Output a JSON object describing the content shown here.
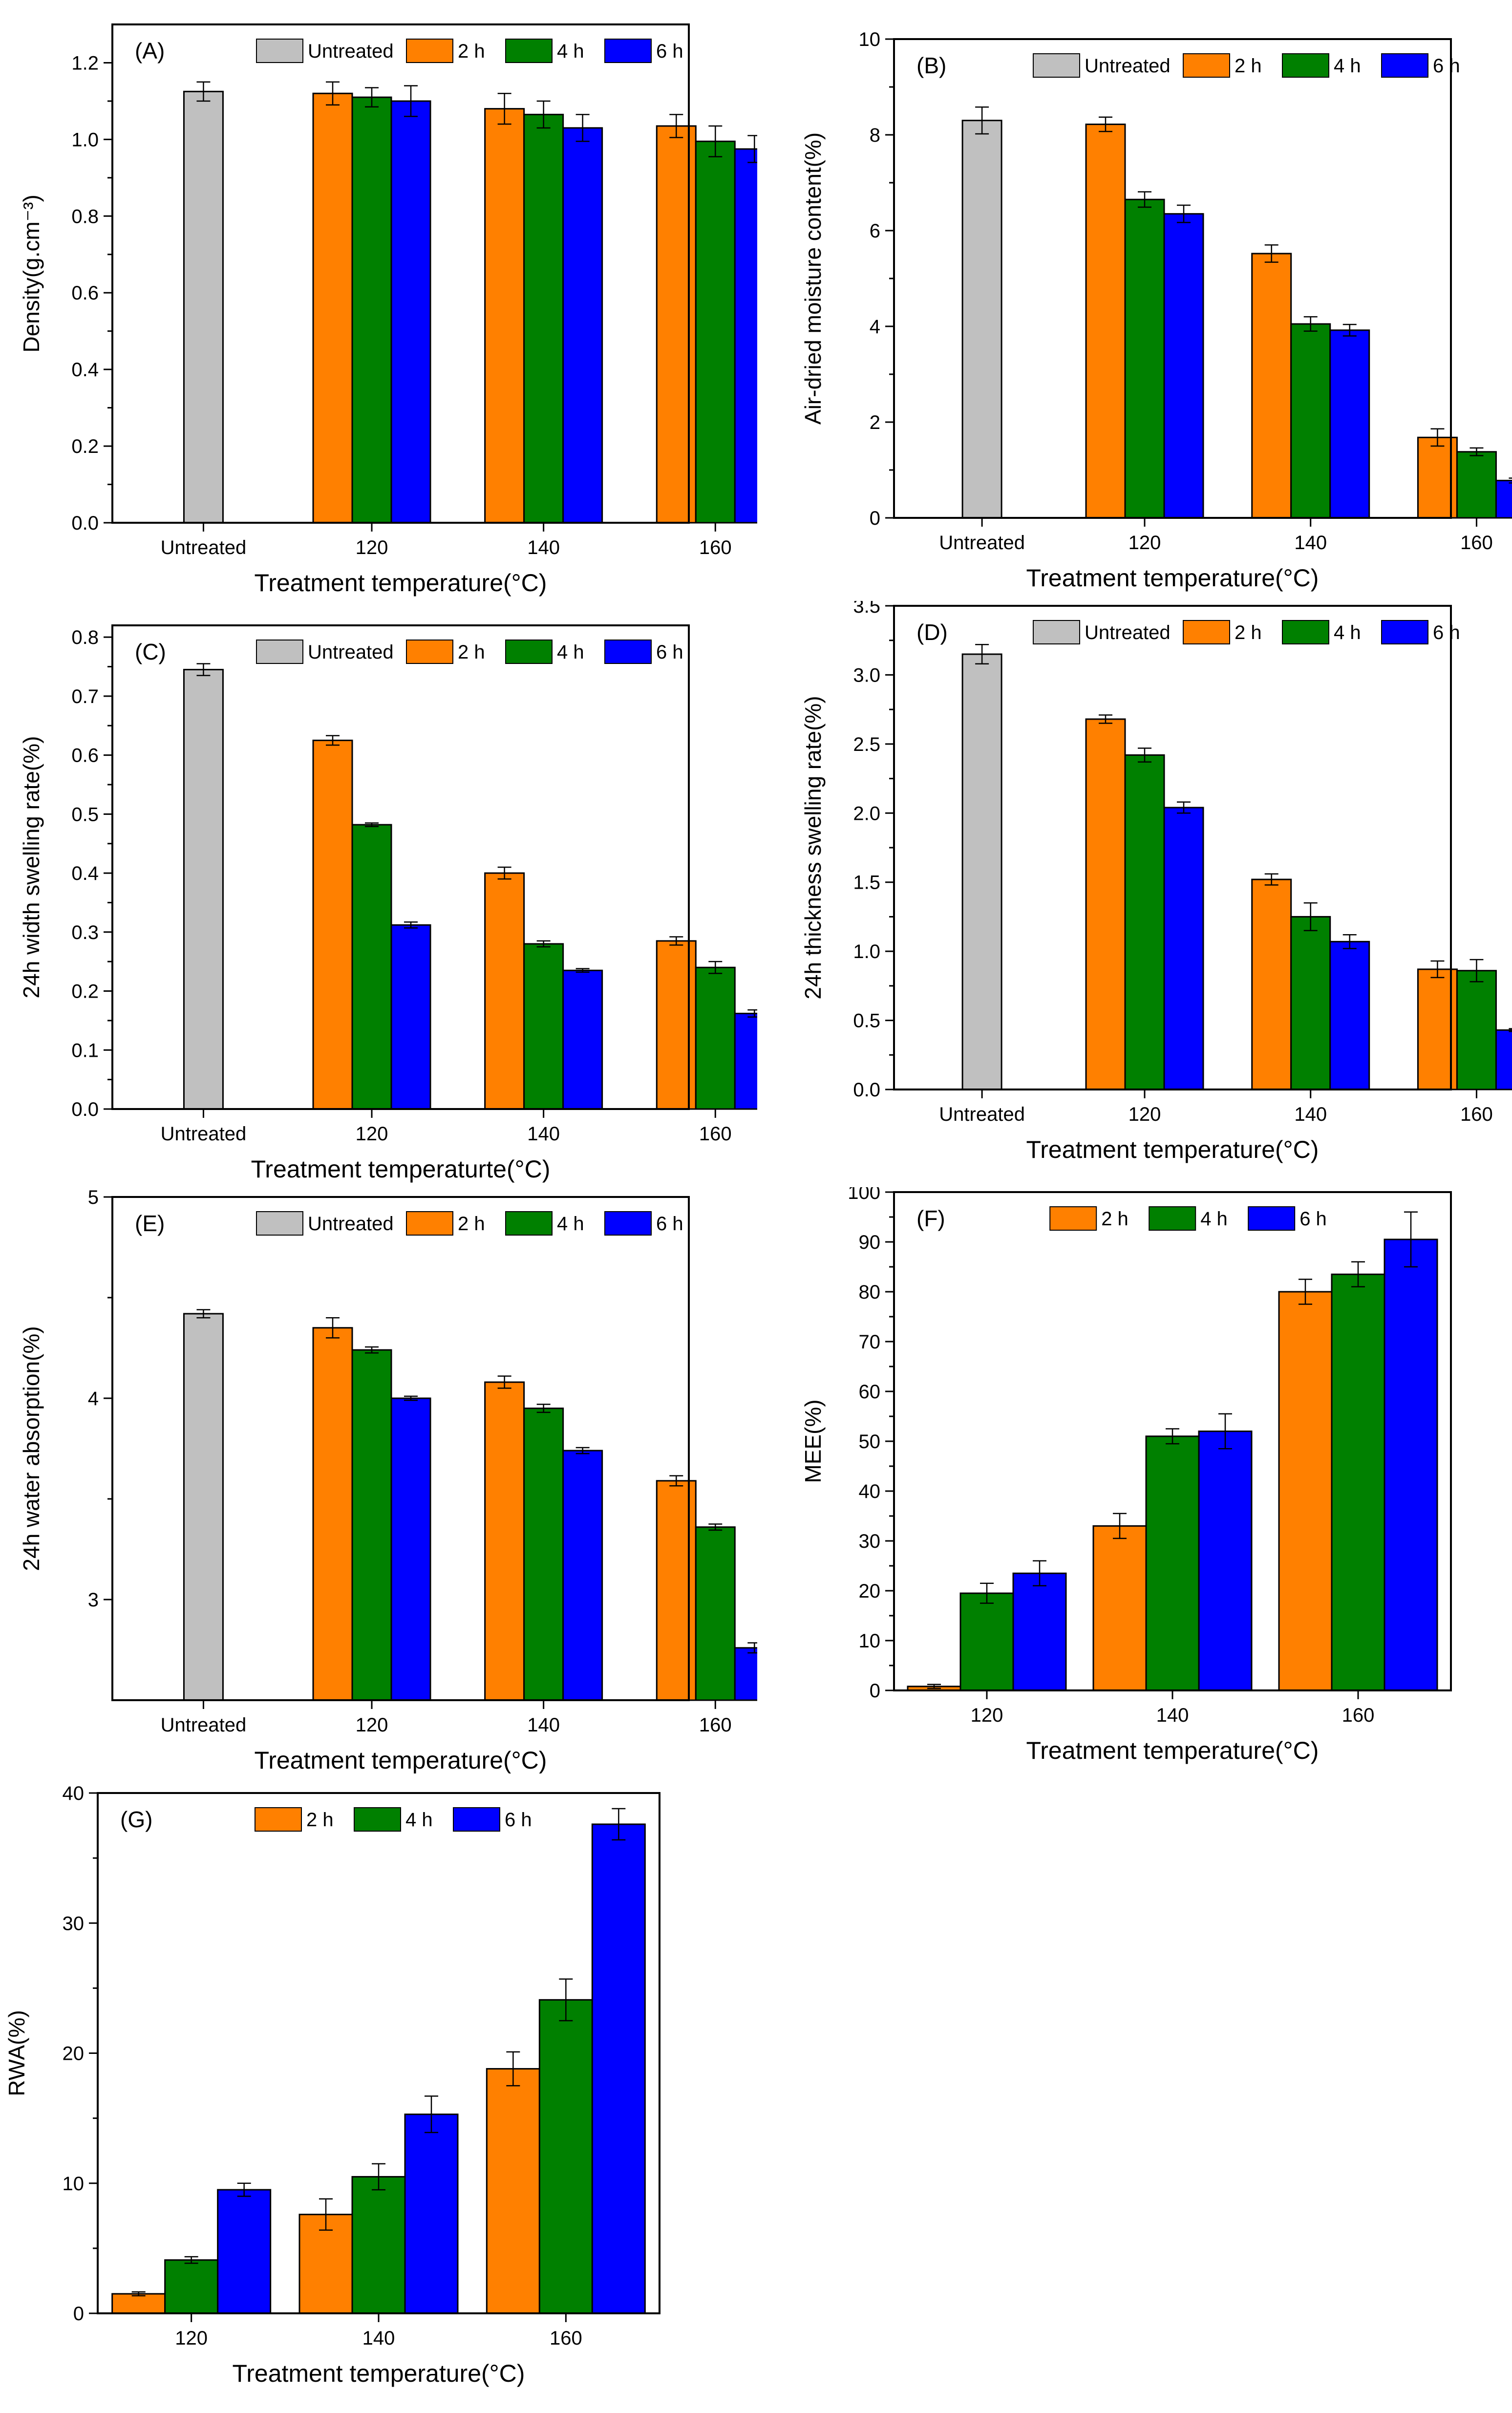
{
  "colors": {
    "untreated": "#c0c0c0",
    "h2": "#ff8000",
    "h4": "#008000",
    "h6": "#0000ff",
    "frame": "#000000"
  },
  "chart_data": [
    {
      "id": "A",
      "type": "bar",
      "panel_label": "(A)",
      "xlabel": "Treatment temperature(°C)",
      "ylabel": "Density(g.cm⁻³)",
      "ylim": [
        0,
        1.3
      ],
      "yticks": [
        0.0,
        0.2,
        0.4,
        0.6,
        0.8,
        1.0,
        1.2
      ],
      "ytick_labels": [
        "0.0",
        "0.2",
        "0.4",
        "0.6",
        "0.8",
        "1.0",
        "1.2"
      ],
      "legend": [
        "Untreated",
        "2 h",
        "4 h",
        "6 h"
      ],
      "legend_location": "top",
      "untreated": {
        "label": "Untreated",
        "value": 1.125,
        "err": 0.025
      },
      "categories": [
        "120",
        "140",
        "160"
      ],
      "series": [
        {
          "name": "2 h",
          "values": [
            1.12,
            1.08,
            1.035
          ],
          "errors": [
            0.03,
            0.04,
            0.03
          ]
        },
        {
          "name": "4 h",
          "values": [
            1.11,
            1.065,
            0.995
          ],
          "errors": [
            0.025,
            0.035,
            0.04
          ]
        },
        {
          "name": "6 h",
          "values": [
            1.1,
            1.03,
            0.975
          ],
          "errors": [
            0.04,
            0.035,
            0.035
          ]
        }
      ]
    },
    {
      "id": "B",
      "type": "bar",
      "panel_label": "(B)",
      "xlabel": "Treatment temperature(°C)",
      "ylabel": "Air-dried moisture content(%)",
      "ylim": [
        0,
        10
      ],
      "yticks": [
        0,
        2,
        4,
        6,
        8,
        10
      ],
      "ytick_labels": [
        "0",
        "2",
        "4",
        "6",
        "8",
        "10"
      ],
      "legend": [
        "Untreated",
        "2 h",
        "4 h",
        "6 h"
      ],
      "legend_location": "top",
      "untreated": {
        "label": "Untreated",
        "value": 8.3,
        "err": 0.28
      },
      "categories": [
        "120",
        "140",
        "160"
      ],
      "series": [
        {
          "name": "2 h",
          "values": [
            8.22,
            5.52,
            1.68
          ],
          "errors": [
            0.15,
            0.18,
            0.18
          ]
        },
        {
          "name": "4 h",
          "values": [
            6.65,
            4.05,
            1.38
          ],
          "errors": [
            0.16,
            0.15,
            0.08
          ]
        },
        {
          "name": "6 h",
          "values": [
            6.35,
            3.92,
            0.78
          ],
          "errors": [
            0.18,
            0.12,
            0.05
          ]
        }
      ]
    },
    {
      "id": "C",
      "type": "bar",
      "panel_label": "(C)",
      "xlabel": "Treatment temperaturte(°C)",
      "ylabel": "24h  width swelling rate(%)",
      "ylim": [
        0,
        0.82
      ],
      "yticks": [
        0.0,
        0.1,
        0.2,
        0.3,
        0.4,
        0.5,
        0.6,
        0.7,
        0.8
      ],
      "ytick_labels": [
        "0.0",
        "0.1",
        "0.2",
        "0.3",
        "0.4",
        "0.5",
        "0.6",
        "0.7",
        "0.8"
      ],
      "legend": [
        "Untreated",
        "2 h",
        "4 h",
        "6 h"
      ],
      "legend_location": "top",
      "untreated": {
        "label": "Untreated",
        "value": 0.745,
        "err": 0.01
      },
      "categories": [
        "120",
        "140",
        "160"
      ],
      "series": [
        {
          "name": "2 h",
          "values": [
            0.625,
            0.4,
            0.285
          ],
          "errors": [
            0.008,
            0.01,
            0.007
          ]
        },
        {
          "name": "4 h",
          "values": [
            0.482,
            0.28,
            0.24
          ],
          "errors": [
            0.003,
            0.005,
            0.01
          ]
        },
        {
          "name": "6 h",
          "values": [
            0.312,
            0.235,
            0.162
          ],
          "errors": [
            0.005,
            0.003,
            0.006
          ]
        }
      ]
    },
    {
      "id": "D",
      "type": "bar",
      "panel_label": "(D)",
      "xlabel": "Treatment temperature(°C)",
      "ylabel": "24h  thickness swelling rate(%)",
      "ylim": [
        0,
        3.5
      ],
      "yticks": [
        0.0,
        0.5,
        1.0,
        1.5,
        2.0,
        2.5,
        3.0,
        3.5
      ],
      "ytick_labels": [
        "0.0",
        "0.5",
        "1.0",
        "1.5",
        "2.0",
        "2.5",
        "3.0",
        "3.5"
      ],
      "legend": [
        "Untreated",
        "2 h",
        "4 h",
        "6 h"
      ],
      "legend_location": "top",
      "untreated": {
        "label": "Untreated",
        "value": 3.15,
        "err": 0.07
      },
      "categories": [
        "120",
        "140",
        "160"
      ],
      "series": [
        {
          "name": "2 h",
          "values": [
            2.68,
            1.52,
            0.87
          ],
          "errors": [
            0.03,
            0.04,
            0.06
          ]
        },
        {
          "name": "4 h",
          "values": [
            2.42,
            1.25,
            0.86
          ],
          "errors": [
            0.05,
            0.1,
            0.08
          ]
        },
        {
          "name": "6 h",
          "values": [
            2.04,
            1.07,
            0.43
          ],
          "errors": [
            0.04,
            0.05,
            0.01
          ]
        }
      ]
    },
    {
      "id": "E",
      "type": "bar",
      "panel_label": "(E)",
      "xlabel": "Treatment temperature(°C)",
      "ylabel": "24h water absorption(%)",
      "ylim": [
        2.5,
        5
      ],
      "yticks": [
        3,
        4,
        5
      ],
      "ytick_labels": [
        "3",
        "4",
        "5"
      ],
      "legend": [
        "Untreated",
        "2 h",
        "4 h",
        "6 h"
      ],
      "legend_location": "top",
      "untreated": {
        "label": "Untreated",
        "value": 4.42,
        "err": 0.02
      },
      "categories": [
        "120",
        "140",
        "160"
      ],
      "series": [
        {
          "name": "2 h",
          "values": [
            4.35,
            4.08,
            3.59
          ],
          "errors": [
            0.05,
            0.03,
            0.025
          ]
        },
        {
          "name": "4 h",
          "values": [
            4.24,
            3.95,
            3.36
          ],
          "errors": [
            0.015,
            0.02,
            0.015
          ]
        },
        {
          "name": "6 h",
          "values": [
            4.0,
            3.74,
            2.76
          ],
          "errors": [
            0.01,
            0.015,
            0.025
          ]
        }
      ]
    },
    {
      "id": "F",
      "type": "bar",
      "panel_label": "(F)",
      "xlabel": "Treatment temperature(°C)",
      "ylabel": "MEE(%)",
      "ylim": [
        0,
        100
      ],
      "yticks": [
        0,
        10,
        20,
        30,
        40,
        50,
        60,
        70,
        80,
        90,
        100
      ],
      "ytick_labels": [
        "0",
        "10",
        "20",
        "30",
        "40",
        "50",
        "60",
        "70",
        "80",
        "90",
        "100"
      ],
      "legend": [
        "2 h",
        "4 h",
        "6 h"
      ],
      "legend_location": "top",
      "categories": [
        "120",
        "140",
        "160"
      ],
      "series": [
        {
          "name": "2 h",
          "values": [
            0.8,
            33,
            80
          ],
          "errors": [
            0.4,
            2.5,
            2.5
          ]
        },
        {
          "name": "4 h",
          "values": [
            19.5,
            51,
            83.5
          ],
          "errors": [
            2.0,
            1.5,
            2.5
          ]
        },
        {
          "name": "6 h",
          "values": [
            23.5,
            52,
            90.5
          ],
          "errors": [
            2.5,
            3.5,
            5.5
          ]
        }
      ]
    },
    {
      "id": "G",
      "type": "bar",
      "panel_label": "(G)",
      "xlabel": "Treatment temperature(°C)",
      "ylabel": "RWA(%)",
      "ylim": [
        0,
        40
      ],
      "yticks": [
        0,
        10,
        20,
        30,
        40
      ],
      "ytick_labels": [
        "0",
        "10",
        "20",
        "30",
        "40"
      ],
      "legend": [
        "2 h",
        "4 h",
        "6 h"
      ],
      "legend_location": "top",
      "categories": [
        "120",
        "140",
        "160"
      ],
      "series": [
        {
          "name": "2 h",
          "values": [
            1.5,
            7.6,
            18.8
          ],
          "errors": [
            0.15,
            1.2,
            1.3
          ]
        },
        {
          "name": "4 h",
          "values": [
            4.1,
            10.5,
            24.1
          ],
          "errors": [
            0.25,
            1.0,
            1.6
          ]
        },
        {
          "name": "6 h",
          "values": [
            9.5,
            15.3,
            37.6
          ],
          "errors": [
            0.5,
            1.4,
            1.2
          ]
        }
      ]
    }
  ]
}
